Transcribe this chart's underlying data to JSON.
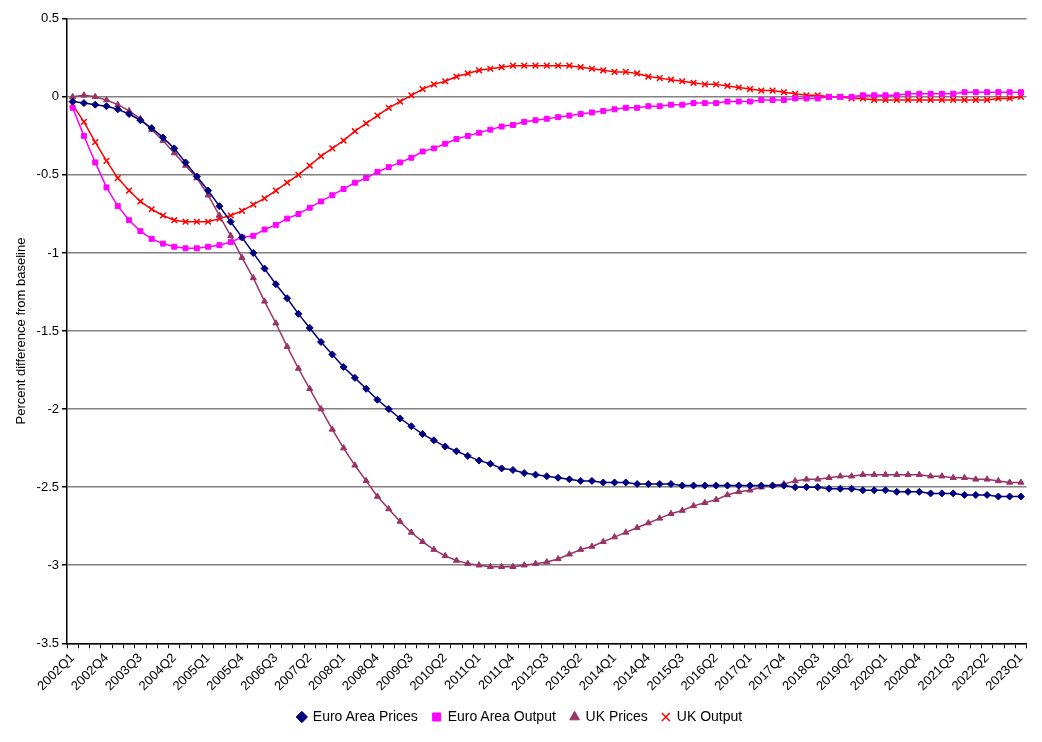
{
  "chart_data": {
    "type": "line",
    "ylabel": "Percent difference from baseline",
    "categories": [
      "2002Q1",
      null,
      null,
      "2002Q4",
      null,
      null,
      "2003Q3",
      null,
      null,
      "2004Q2",
      null,
      null,
      "2005Q1",
      null,
      null,
      "2005Q4",
      null,
      null,
      "2006Q3",
      null,
      null,
      "2007Q2",
      null,
      null,
      "2008Q1",
      null,
      null,
      "2008Q4",
      null,
      null,
      "2009Q3",
      null,
      null,
      "2010Q2",
      null,
      null,
      "2011Q1",
      null,
      null,
      "2011Q4",
      null,
      null,
      "2012Q3",
      null,
      null,
      "2013Q2",
      null,
      null,
      "2014Q1",
      null,
      null,
      "2014Q4",
      null,
      null,
      "2015Q3",
      null,
      null,
      "2016Q2",
      null,
      null,
      "2017Q1",
      null,
      null,
      "2017Q4",
      null,
      null,
      "2018Q3",
      null,
      null,
      "2019Q2",
      null,
      null,
      "2020Q1",
      null,
      null,
      "2020Q4",
      null,
      null,
      "2021Q3",
      null,
      null,
      "2022Q2",
      null,
      null,
      "2023Q1"
    ],
    "series": [
      {
        "name": "Euro Area Prices",
        "color": "#000080",
        "marker": "diamond",
        "values": [
          -0.03,
          -0.04,
          -0.05,
          -0.06,
          -0.08,
          -0.11,
          -0.15,
          -0.2,
          -0.26,
          -0.33,
          -0.42,
          -0.51,
          -0.6,
          -0.7,
          -0.8,
          -0.9,
          -1.0,
          -1.1,
          -1.2,
          -1.29,
          -1.39,
          -1.48,
          -1.57,
          -1.65,
          -1.73,
          -1.8,
          -1.87,
          -1.94,
          -2.0,
          -2.06,
          -2.11,
          -2.16,
          -2.2,
          -2.24,
          -2.27,
          -2.3,
          -2.33,
          -2.35,
          -2.38,
          -2.39,
          -2.41,
          -2.42,
          -2.43,
          -2.44,
          -2.45,
          -2.46,
          -2.46,
          -2.47,
          -2.47,
          -2.47,
          -2.48,
          -2.48,
          -2.48,
          -2.48,
          -2.49,
          -2.49,
          -2.49,
          -2.49,
          -2.49,
          -2.49,
          -2.49,
          -2.49,
          -2.49,
          -2.49,
          -2.5,
          -2.5,
          -2.5,
          -2.51,
          -2.51,
          -2.51,
          -2.52,
          -2.52,
          -2.52,
          -2.53,
          -2.53,
          -2.53,
          -2.54,
          -2.54,
          -2.54,
          -2.55,
          -2.55,
          -2.55,
          -2.56,
          -2.56,
          -2.56
        ]
      },
      {
        "name": "Euro Area Output",
        "color": "#ff00ff",
        "marker": "square",
        "values": [
          -0.07,
          -0.25,
          -0.42,
          -0.58,
          -0.7,
          -0.79,
          -0.86,
          -0.91,
          -0.94,
          -0.96,
          -0.97,
          -0.97,
          -0.96,
          -0.95,
          -0.93,
          -0.9,
          -0.89,
          -0.85,
          -0.82,
          -0.78,
          -0.75,
          -0.71,
          -0.67,
          -0.63,
          -0.59,
          -0.55,
          -0.52,
          -0.48,
          -0.45,
          -0.42,
          -0.39,
          -0.35,
          -0.33,
          -0.3,
          -0.27,
          -0.25,
          -0.23,
          -0.21,
          -0.19,
          -0.18,
          -0.16,
          -0.15,
          -0.14,
          -0.13,
          -0.12,
          -0.11,
          -0.1,
          -0.09,
          -0.08,
          -0.07,
          -0.07,
          -0.06,
          -0.06,
          -0.05,
          -0.05,
          -0.04,
          -0.04,
          -0.04,
          -0.03,
          -0.03,
          -0.03,
          -0.02,
          -0.02,
          -0.02,
          -0.01,
          -0.01,
          -0.01,
          0,
          0,
          0,
          0.01,
          0.01,
          0.01,
          0.01,
          0.02,
          0.02,
          0.02,
          0.02,
          0.02,
          0.03,
          0.03,
          0.03,
          0.03,
          0.03,
          0.03
        ]
      },
      {
        "name": "UK Prices",
        "color": "#993366",
        "marker": "triangle",
        "values": [
          0,
          0.01,
          0,
          -0.02,
          -0.05,
          -0.09,
          -0.14,
          -0.21,
          -0.28,
          -0.36,
          -0.44,
          -0.52,
          -0.63,
          -0.76,
          -0.89,
          -1.03,
          -1.16,
          -1.31,
          -1.45,
          -1.6,
          -1.74,
          -1.87,
          -2.0,
          -2.13,
          -2.25,
          -2.36,
          -2.46,
          -2.56,
          -2.64,
          -2.72,
          -2.79,
          -2.85,
          -2.9,
          -2.94,
          -2.97,
          -2.99,
          -3.0,
          -3.01,
          -3.01,
          -3.01,
          -3.0,
          -2.99,
          -2.98,
          -2.96,
          -2.93,
          -2.9,
          -2.88,
          -2.85,
          -2.82,
          -2.79,
          -2.76,
          -2.73,
          -2.7,
          -2.67,
          -2.65,
          -2.62,
          -2.6,
          -2.58,
          -2.55,
          -2.53,
          -2.52,
          -2.5,
          -2.49,
          -2.48,
          -2.46,
          -2.45,
          -2.45,
          -2.44,
          -2.43,
          -2.43,
          -2.42,
          -2.42,
          -2.42,
          -2.42,
          -2.42,
          -2.42,
          -2.43,
          -2.43,
          -2.44,
          -2.44,
          -2.45,
          -2.45,
          -2.46,
          -2.47,
          -2.47
        ]
      },
      {
        "name": "UK Output",
        "color": "#ff0000",
        "marker": "cross",
        "values": [
          -0.05,
          -0.16,
          -0.29,
          -0.41,
          -0.52,
          -0.6,
          -0.67,
          -0.72,
          -0.76,
          -0.79,
          -0.8,
          -0.8,
          -0.8,
          -0.78,
          -0.76,
          -0.73,
          -0.69,
          -0.65,
          -0.6,
          -0.55,
          -0.5,
          -0.44,
          -0.38,
          -0.33,
          -0.28,
          -0.22,
          -0.17,
          -0.12,
          -0.07,
          -0.03,
          0.01,
          0.05,
          0.08,
          0.1,
          0.13,
          0.15,
          0.17,
          0.18,
          0.19,
          0.2,
          0.2,
          0.2,
          0.2,
          0.2,
          0.2,
          0.19,
          0.18,
          0.17,
          0.16,
          0.16,
          0.15,
          0.13,
          0.12,
          0.11,
          0.1,
          0.09,
          0.08,
          0.08,
          0.07,
          0.06,
          0.05,
          0.04,
          0.04,
          0.03,
          0.02,
          0.01,
          0.01,
          0,
          0,
          -0.01,
          -0.01,
          -0.02,
          -0.02,
          -0.02,
          -0.02,
          -0.02,
          -0.02,
          -0.02,
          -0.02,
          -0.02,
          -0.02,
          -0.02,
          -0.01,
          -0.01,
          0
        ]
      }
    ],
    "ylim": [
      -3.5,
      0.5
    ],
    "yticks": [
      -3.5,
      -3,
      -2.5,
      -2,
      -1.5,
      -1,
      -0.5,
      0,
      0.5
    ],
    "grid": "y",
    "legend": "bottom",
    "line_style": "solid"
  }
}
